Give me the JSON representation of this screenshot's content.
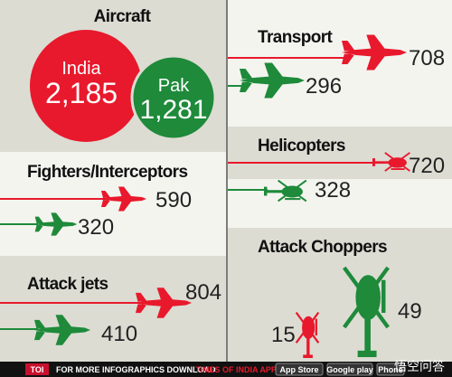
{
  "aircraft": {
    "title": "Aircraft",
    "india": {
      "label": "India",
      "value": "2,185"
    },
    "pak": {
      "label": "Pak",
      "value": "1,281"
    }
  },
  "sections": [
    {
      "title": "Fighters/Interceptors",
      "india": "590",
      "pak": "320"
    },
    {
      "title": "Attack jets",
      "india": "804",
      "pak": "410"
    },
    {
      "title": "Transport",
      "india": "708",
      "pak": "296"
    },
    {
      "title": "Helicopters",
      "india": "720",
      "pak": "328"
    },
    {
      "title": "Attack Choppers",
      "india": "15",
      "pak": "49"
    }
  ],
  "footer": {
    "brand": "TOI",
    "text": "FOR MORE INFOGRAPHICS DOWNLOAD",
    "app": "TIMES OF INDIA APP",
    "badges": [
      "App Store",
      "Google play",
      "Phone"
    ],
    "watermark": "悟空问答"
  }
}
